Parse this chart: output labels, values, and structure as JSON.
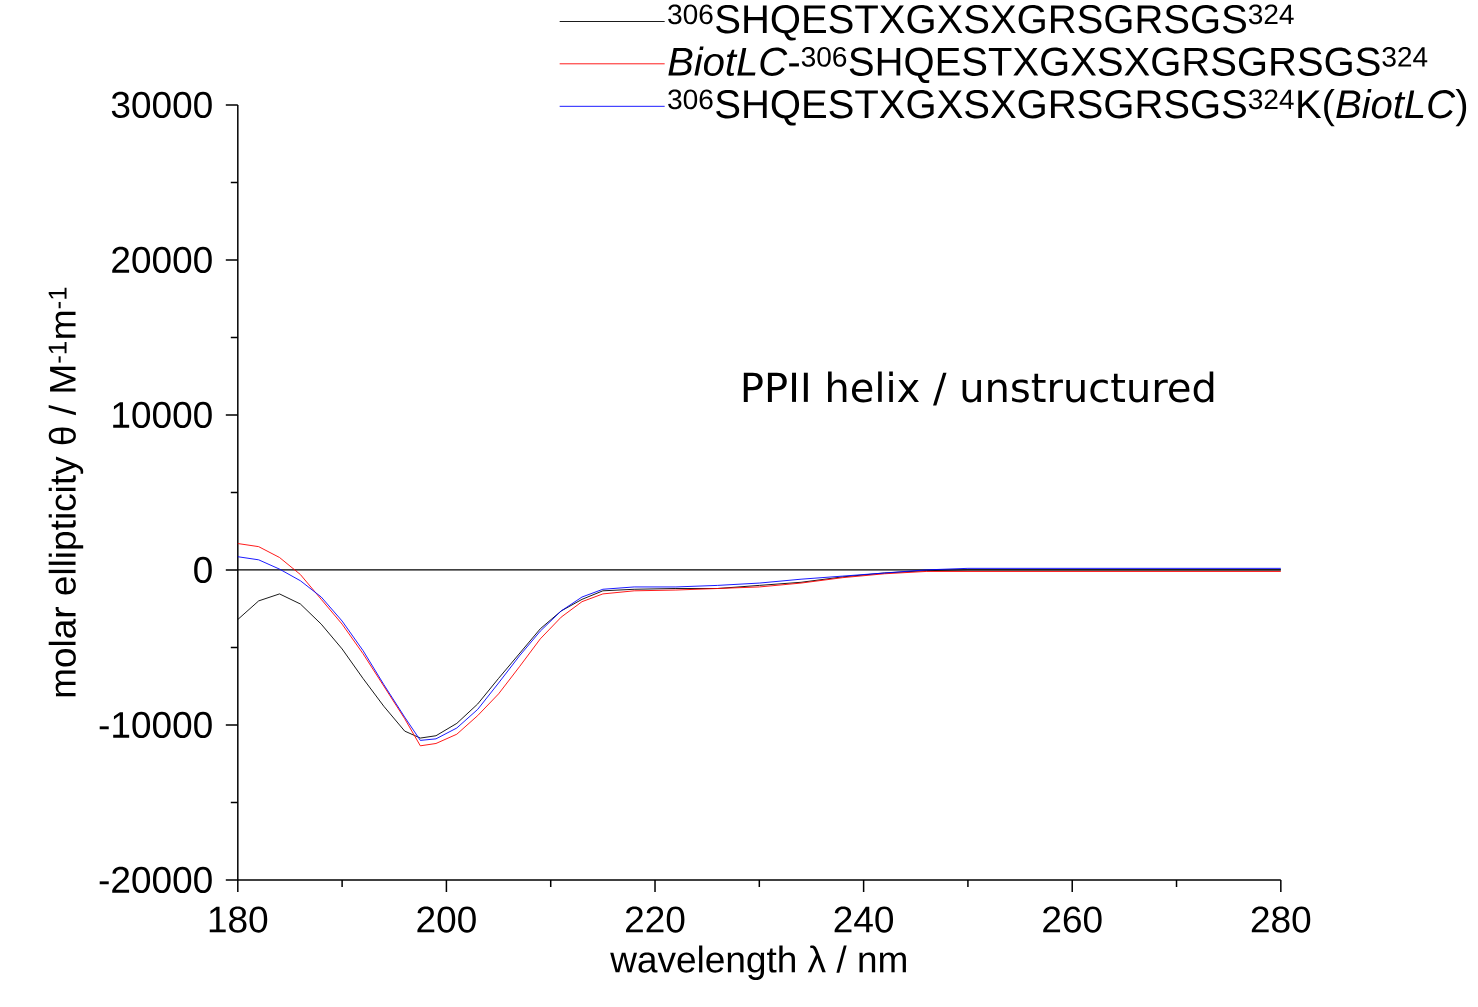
{
  "chart_data": {
    "type": "line",
    "xlabel": "wavelength λ / nm",
    "ylabel": "molar ellipticity θ / M$^{-1}$m$^{-1}$",
    "annotations": [
      "PPII helix / unstructured"
    ],
    "x": [
      180,
      182,
      184,
      186,
      188,
      190,
      192,
      194,
      196,
      197.5,
      199,
      201,
      203,
      205,
      207,
      209,
      211,
      213,
      215,
      218,
      222,
      226,
      230,
      234,
      238,
      242,
      246,
      250,
      260,
      270,
      280
    ],
    "series": [
      {
        "name": "$^{306}$SHQESTXGXSXGRSGRSGS$^{324}$",
        "color": "#000000",
        "values": [
          -3200,
          -2000,
          -1550,
          -2200,
          -3500,
          -5100,
          -7000,
          -8800,
          -10400,
          -10850,
          -10700,
          -9900,
          -8650,
          -7000,
          -5400,
          -3800,
          -2650,
          -1900,
          -1350,
          -1250,
          -1200,
          -1200,
          -1000,
          -800,
          -450,
          -200,
          -50,
          0,
          0,
          0,
          0
        ]
      },
      {
        "name": "*BiotLC*-$^{306}$SHQESTXGXSXGRSGRSGS$^{324}$",
        "color": "#ff0000",
        "values": [
          1700,
          1500,
          800,
          -300,
          -1900,
          -3500,
          -5400,
          -7500,
          -9600,
          -11350,
          -11200,
          -10600,
          -9400,
          -8000,
          -6250,
          -4450,
          -3050,
          -2050,
          -1550,
          -1350,
          -1300,
          -1200,
          -1100,
          -850,
          -500,
          -250,
          -100,
          -100,
          -100,
          -100,
          -100
        ]
      },
      {
        "name": "$^{306}$SHQESTXGXSXGRSGRSGS$^{324}$K(*BiotLC*)",
        "color": "#0000ff",
        "values": [
          850,
          650,
          50,
          -700,
          -1750,
          -3300,
          -5200,
          -7400,
          -9500,
          -11000,
          -10900,
          -10200,
          -9000,
          -7300,
          -5550,
          -3950,
          -2650,
          -1750,
          -1250,
          -1100,
          -1100,
          -1000,
          -850,
          -600,
          -400,
          -200,
          0,
          100,
          100,
          100,
          100
        ]
      }
    ],
    "xlim": [
      180,
      280
    ],
    "ylim": [
      -20000,
      30000
    ],
    "xticks": [
      180,
      200,
      220,
      240,
      260,
      280
    ],
    "yticks": [
      -20000,
      -10000,
      0,
      10000,
      20000,
      30000
    ],
    "ref_lines": [
      {
        "axis": "y",
        "value": 0,
        "color": "#000000"
      }
    ],
    "grid": false,
    "legend": "top",
    "marker": "none",
    "line_style": "solid"
  }
}
